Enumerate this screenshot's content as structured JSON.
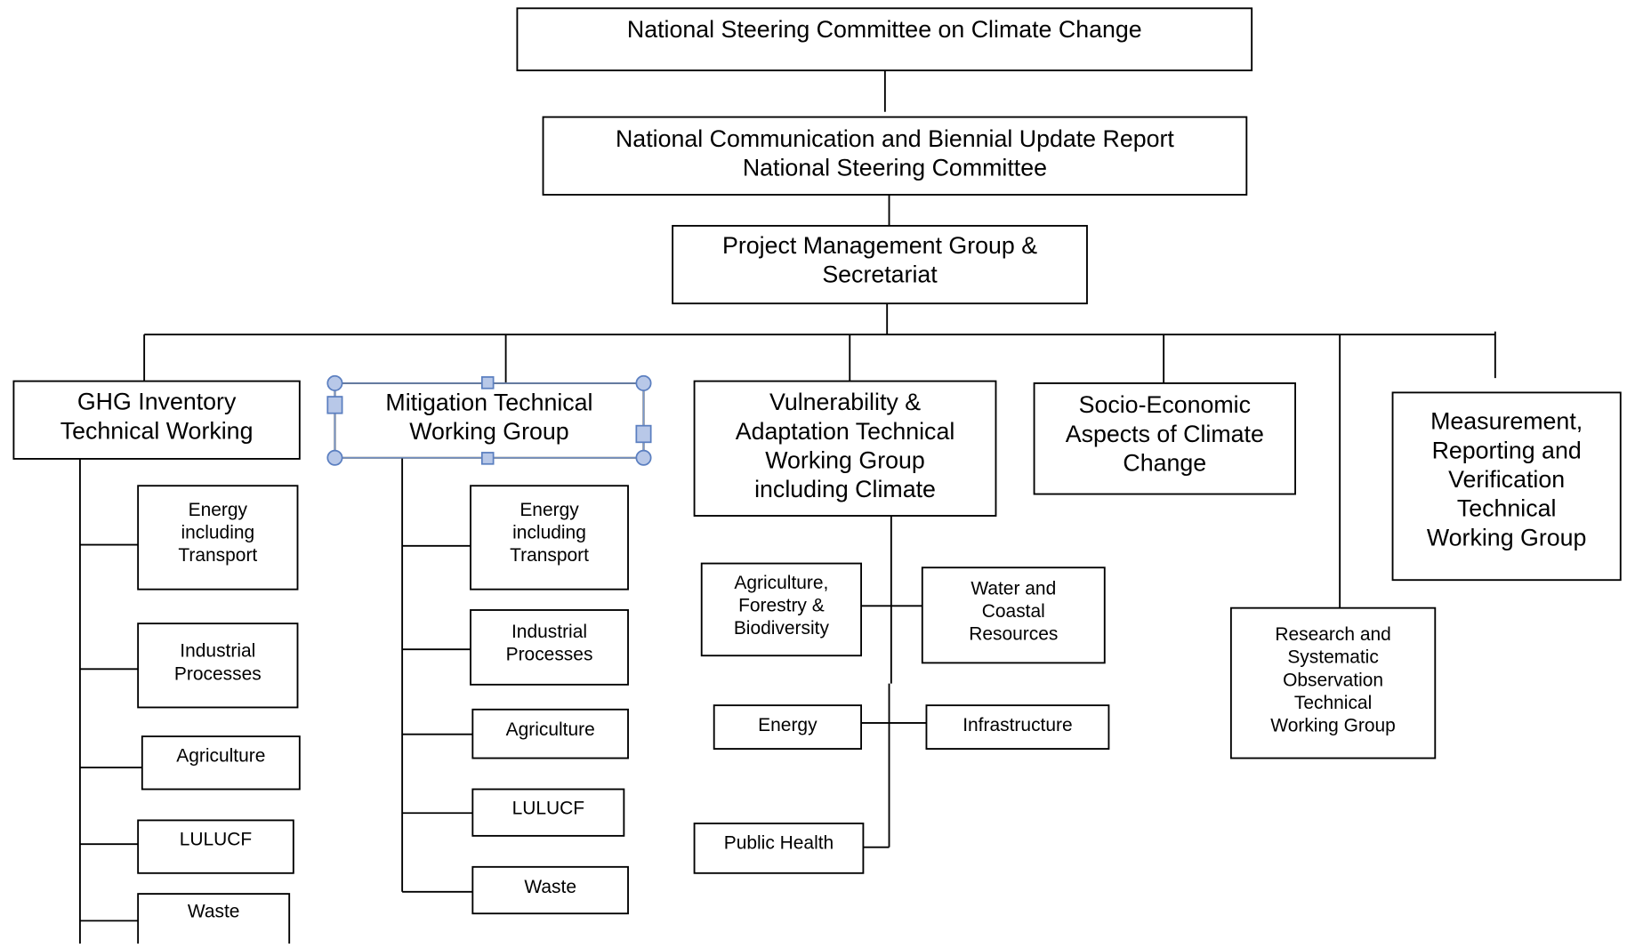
{
  "nodes": [
    {
      "lines": [
        "National Steering Committee on Climate Change"
      ]
    },
    {
      "lines": [
        "National Communication and Biennial Update Report",
        "National Steering Committee"
      ]
    },
    {
      "lines": [
        "Project Management Group &",
        "Secretariat"
      ]
    },
    {
      "lines": [
        "GHG Inventory",
        "Technical Working"
      ]
    },
    {
      "lines": [
        "Mitigation Technical",
        "Working Group"
      ]
    },
    {
      "lines": [
        "Vulnerability &",
        "Adaptation Technical",
        "Working Group",
        "including Climate"
      ]
    },
    {
      "lines": [
        "Socio-Economic",
        "Aspects of Climate",
        "Change"
      ]
    },
    {
      "lines": [
        "Measurement,",
        "Reporting and",
        "Verification",
        "Technical",
        "Working Group"
      ]
    },
    {
      "lines": [
        "Research and",
        "Systematic",
        "Observation",
        "Technical",
        "Working Group"
      ]
    },
    {
      "lines": [
        "Energy",
        "including",
        "Transport"
      ]
    },
    {
      "lines": [
        "Industrial",
        "Processes"
      ]
    },
    {
      "lines": [
        "Agriculture"
      ]
    },
    {
      "lines": [
        "LULUCF"
      ]
    },
    {
      "lines": [
        "Waste"
      ]
    },
    {
      "lines": [
        "Energy",
        "including",
        "Transport"
      ]
    },
    {
      "lines": [
        "Industrial",
        "Processes"
      ]
    },
    {
      "lines": [
        "Agriculture"
      ]
    },
    {
      "lines": [
        "LULUCF"
      ]
    },
    {
      "lines": [
        "Waste"
      ]
    },
    {
      "lines": [
        "Agriculture,",
        "Forestry &",
        "Biodiversity"
      ]
    },
    {
      "lines": [
        "Water and",
        "Coastal",
        "Resources"
      ]
    },
    {
      "lines": [
        "Energy"
      ]
    },
    {
      "lines": [
        "Infrastructure"
      ]
    },
    {
      "lines": [
        "Public Health"
      ]
    }
  ]
}
